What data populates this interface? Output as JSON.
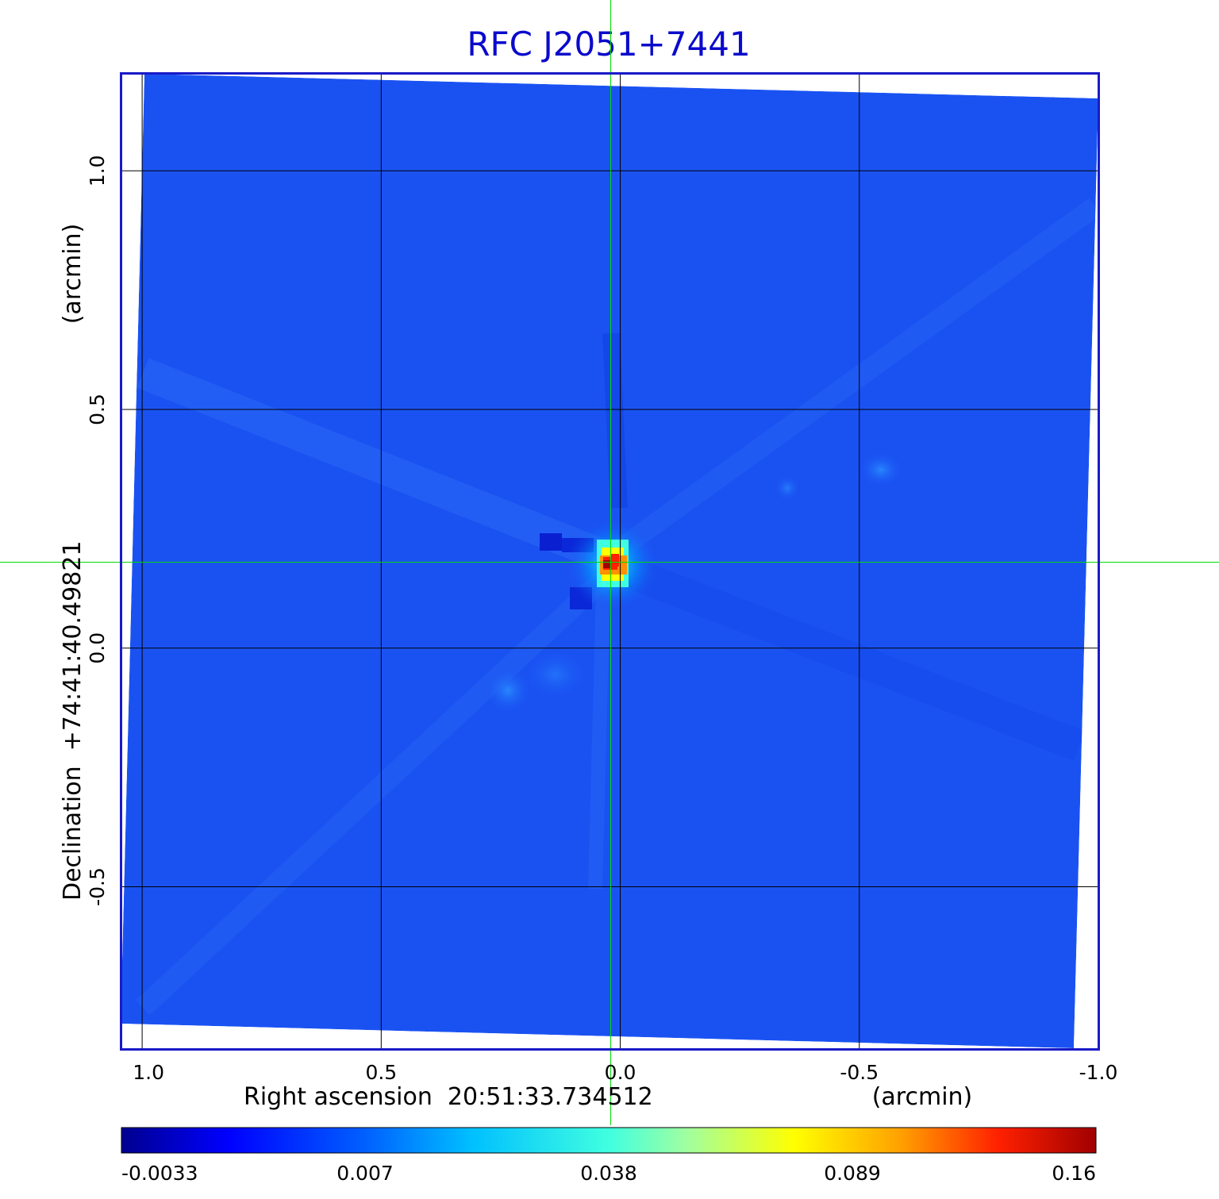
{
  "chart_data": {
    "type": "heatmap",
    "title": "RFC J2051+7441",
    "xlabel": "Right ascension  20:51:33.734512",
    "xunit": "(arcmin)",
    "ylabel": "Declination  +74:41:40.49821",
    "yunit": "(arcmin)",
    "x_ticks": [
      {
        "value": 1.0,
        "label": "1.0"
      },
      {
        "value": 0.5,
        "label": "0.5"
      },
      {
        "value": 0.0,
        "label": "0.0"
      },
      {
        "value": -0.5,
        "label": "-0.5"
      },
      {
        "value": -1.0,
        "label": "-1.0"
      }
    ],
    "y_ticks": [
      {
        "value": 1.0,
        "label": "1.0"
      },
      {
        "value": 0.5,
        "label": "0.5"
      },
      {
        "value": 0.0,
        "label": "0.0"
      },
      {
        "value": -0.5,
        "label": "-0.5"
      }
    ],
    "xlim": [
      1.045,
      -1.0
    ],
    "ylim": [
      -0.84,
      1.205
    ],
    "grid": true,
    "crosshair": {
      "x": 0.02,
      "y": 0.18,
      "color": "#00dd00"
    },
    "colorbar": {
      "colormap": "jet",
      "range": [
        -0.0033,
        0.16
      ],
      "tick_labels": [
        "-0.0033",
        "0.007",
        "0.038",
        "0.089",
        "0.16"
      ]
    },
    "source": {
      "x": 0.02,
      "y": 0.17,
      "peak": 0.16
    },
    "colors": {
      "title": "#0a0acc",
      "frame": "#1a1ac8",
      "background_map": "#1a52f2"
    }
  }
}
